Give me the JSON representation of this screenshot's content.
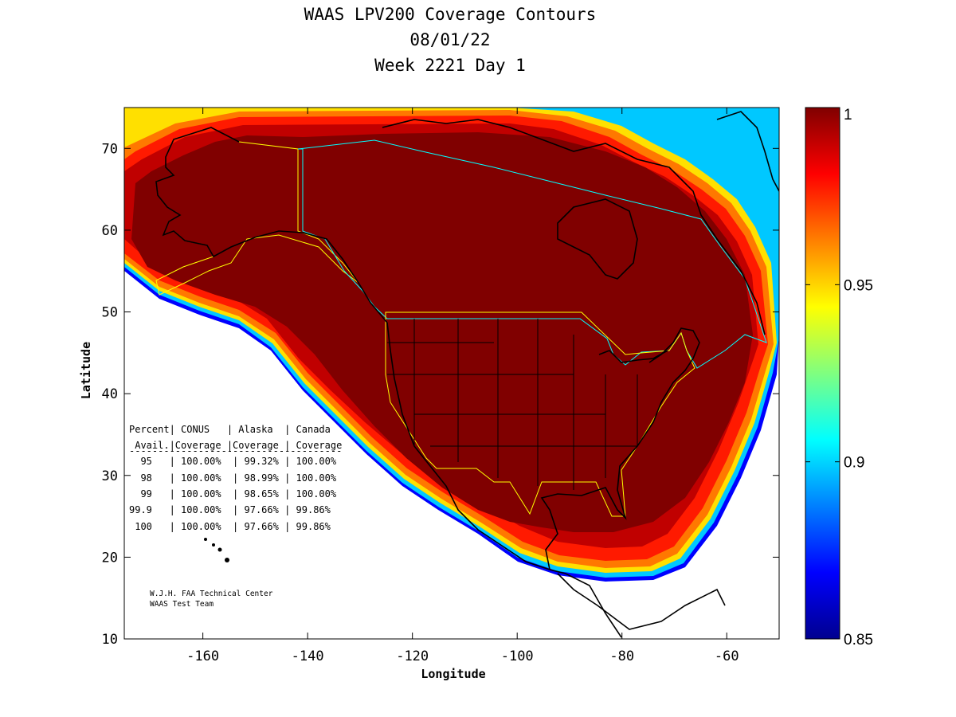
{
  "title": {
    "line1": "WAAS LPV200 Coverage Contours",
    "line2": "08/01/22",
    "line3": "Week 2221 Day 1"
  },
  "axes": {
    "xlabel": "Longitude",
    "ylabel": "Latitude",
    "x_ticks": [
      "-160",
      "-140",
      "-120",
      "-100",
      "-80",
      "-60"
    ],
    "y_ticks": [
      "10",
      "20",
      "30",
      "40",
      "50",
      "60",
      "70"
    ],
    "xlim": [
      -175,
      -50
    ],
    "ylim": [
      10,
      75
    ]
  },
  "colorbar": {
    "labels": [
      "1",
      "0.95",
      "0.9",
      "0.85"
    ],
    "range": [
      0.85,
      1
    ],
    "colormap": "jet"
  },
  "colors": {
    "coverage_core": "#800000",
    "region_outline_yellow": "#ffff00",
    "region_outline_cyan": "#00ffff",
    "coastline": "#000000"
  },
  "table": {
    "header1": "Percent| CONUS   | Alaska  | Canada",
    "header2": " Avail.|Coverage |Coverage | Coverage",
    "rule": "-------------------------------------",
    "rows": [
      "  95   | 100.00%  | 99.32% | 100.00%",
      "  98   | 100.00%  | 98.99% | 100.00%",
      "  99   | 100.00%  | 98.65% | 100.00%",
      "99.9   | 100.00%  | 97.66% | 99.86%",
      " 100   | 100.00%  | 97.66% | 99.86%"
    ]
  },
  "credits": {
    "line1": "W.J.H. FAA Technical Center",
    "line2": "WAAS Test Team"
  }
}
